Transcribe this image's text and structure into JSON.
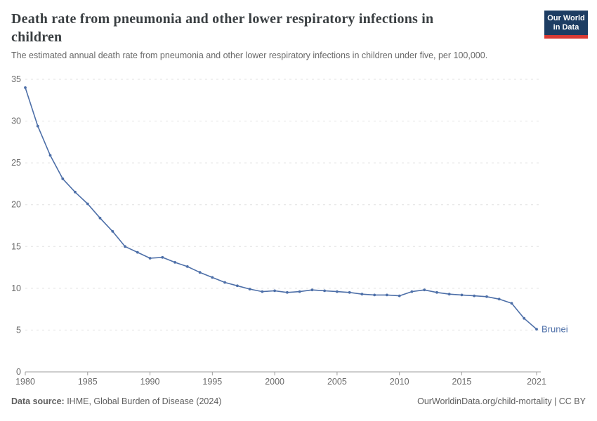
{
  "header": {
    "title_line1": "Death rate from pneumonia and other lower respiratory infections in",
    "title_line2": "children",
    "subtitle": "The estimated annual death rate from pneumonia and other lower respiratory infections in children under five, per 100,000.",
    "logo": {
      "line1": "Our World",
      "line2": "in Data"
    }
  },
  "chart_data": {
    "type": "line",
    "title": "Death rate from pneumonia and other lower respiratory infections in children",
    "entity_label": "Brunei",
    "x": [
      1980,
      1981,
      1982,
      1983,
      1984,
      1985,
      1986,
      1987,
      1988,
      1989,
      1990,
      1991,
      1992,
      1993,
      1994,
      1995,
      1996,
      1997,
      1998,
      1999,
      2000,
      2001,
      2002,
      2003,
      2004,
      2005,
      2006,
      2007,
      2008,
      2009,
      2010,
      2011,
      2012,
      2013,
      2014,
      2015,
      2016,
      2017,
      2018,
      2019,
      2020,
      2021
    ],
    "series": [
      {
        "name": "Brunei",
        "values": [
          34.0,
          29.4,
          25.9,
          23.1,
          21.5,
          20.1,
          18.4,
          16.8,
          15.0,
          14.3,
          13.6,
          13.7,
          13.1,
          12.6,
          11.9,
          11.3,
          10.7,
          10.3,
          9.9,
          9.6,
          9.7,
          9.5,
          9.6,
          9.8,
          9.7,
          9.6,
          9.5,
          9.3,
          9.2,
          9.2,
          9.1,
          9.6,
          9.8,
          9.5,
          9.3,
          9.2,
          9.1,
          9.0,
          8.7,
          8.2,
          6.4,
          5.1
        ]
      }
    ],
    "xlabel": "",
    "ylabel": "",
    "ylim": [
      0,
      35
    ],
    "yticks": [
      0,
      5,
      10,
      15,
      20,
      25,
      30,
      35
    ],
    "xticks": [
      1980,
      1985,
      1990,
      1995,
      2000,
      2005,
      2010,
      2015,
      2021
    ],
    "grid": "horizontal-dashed",
    "legend_position": "end-of-line-label"
  },
  "footer": {
    "source_label": "Data source:",
    "source_text": " IHME, Global Burden of Disease (2024)",
    "attribution": "OurWorldinData.org/child-mortality | CC BY"
  },
  "colors": {
    "line": "#4d6fa8",
    "entity_label": "#4d6fa8",
    "grid": "#e2e2e2",
    "axis": "#9c9c9c",
    "tick_text": "#6b6b6b",
    "logo_bg": "#1d3d63",
    "logo_stripe": "#d93a34",
    "title_text": "#3a3f42"
  }
}
